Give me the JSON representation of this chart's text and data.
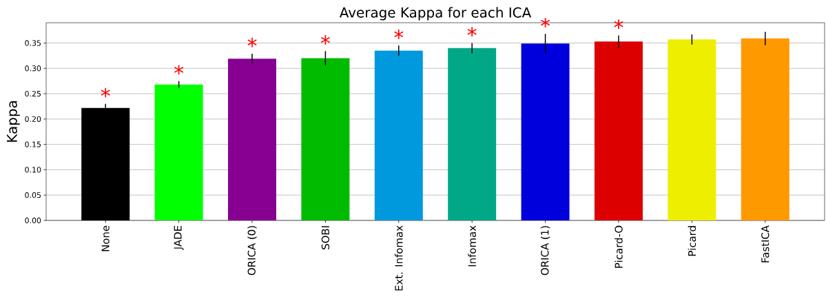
{
  "chart_data": {
    "type": "bar",
    "title": "Average Kappa for each ICA",
    "ylabel": "Kappa",
    "categories": [
      "None",
      "JADE",
      "ORICA (0)",
      "SOBI",
      "Ext. Infomax",
      "Infomax",
      "ORICA (1)",
      "Picard-O",
      "Picard",
      "FastICA"
    ],
    "values": [
      0.222,
      0.268,
      0.319,
      0.32,
      0.335,
      0.34,
      0.349,
      0.353,
      0.357,
      0.359
    ],
    "errors": [
      0.008,
      0.007,
      0.01,
      0.014,
      0.01,
      0.01,
      0.019,
      0.012,
      0.01,
      0.013
    ],
    "colors": [
      "#000000",
      "#00ff00",
      "#870091",
      "#00bb00",
      "#0099dd",
      "#00a888",
      "#0000dd",
      "#dd0000",
      "#eeee00",
      "#ff9900"
    ],
    "ylim": [
      0,
      0.39
    ],
    "yticks": [
      {
        "value": 0,
        "label": "0.00"
      },
      {
        "value": 0.05,
        "label": "0.05"
      },
      {
        "value": 0.1,
        "label": "0.10"
      },
      {
        "value": 0.15,
        "label": "0.15"
      },
      {
        "value": 0.2,
        "label": "0.20"
      },
      {
        "value": 0.25,
        "label": "0.25"
      },
      {
        "value": 0.3,
        "label": "0.30"
      },
      {
        "value": 0.35,
        "label": "0.35"
      }
    ],
    "grid": "y",
    "annotations": [
      {
        "text": "*",
        "x": "None",
        "y": 0.222
      },
      {
        "text": "*",
        "x": "JADE",
        "y": 0.268
      },
      {
        "text": "*",
        "x": "ORICA (0)",
        "y": 0.319
      },
      {
        "text": "*",
        "x": "SOBI",
        "y": 0.32
      },
      {
        "text": "*",
        "x": "Ext. Infomax",
        "y": 0.335
      },
      {
        "text": "*",
        "x": "Infomax",
        "y": 0.34
      },
      {
        "text": "*",
        "x": "ORICA (1)",
        "y": 0.349
      },
      {
        "text": "*",
        "x": "Picard-O",
        "y": 0.353
      }
    ]
  }
}
